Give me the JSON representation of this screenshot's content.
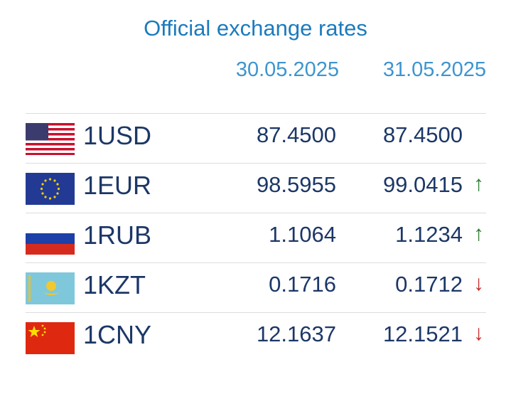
{
  "header": {
    "title": "Official exchange rates",
    "dates": [
      "30.05.2025",
      "31.05.2025"
    ]
  },
  "rows": [
    {
      "currency": "1USD",
      "rates": [
        "87.4500",
        "87.4500"
      ]
    },
    {
      "currency": "1EUR",
      "rates": [
        "98.5955",
        "99.0415"
      ],
      "trend": "↑"
    },
    {
      "currency": "1RUB",
      "rates": [
        "1.1064",
        "1.1234"
      ],
      "trend": "↑"
    },
    {
      "currency": "1KZT",
      "rates": [
        "0.1716",
        "0.1712"
      ],
      "trend": "↓"
    },
    {
      "currency": "1CNY",
      "rates": [
        "12.1637",
        "12.1521"
      ],
      "trend": "↓"
    }
  ]
}
